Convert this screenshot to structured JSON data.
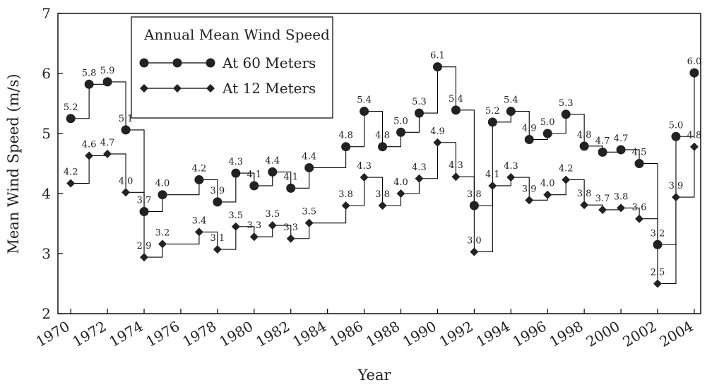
{
  "chart_data": {
    "type": "line",
    "xlabel": "Year",
    "ylabel": "Mean Wind Speed (m/s)",
    "ylim": [
      2,
      7
    ],
    "xlim": [
      1970,
      2004
    ],
    "y_ticks": [
      2,
      3,
      4,
      5,
      6,
      7
    ],
    "x_ticks": [
      1970,
      1972,
      1974,
      1976,
      1978,
      1980,
      1982,
      1984,
      1986,
      1988,
      1990,
      1992,
      1994,
      1996,
      1998,
      2000,
      2002,
      2004
    ],
    "x_ticks_labels": [
      "1970",
      "1972",
      "1974",
      "1976",
      "1978",
      "1980",
      "1982",
      "1984",
      "1986",
      "1988",
      "1990",
      "1992",
      "1994",
      "1996",
      "1998",
      "2000",
      "2002",
      "2004"
    ],
    "y_ticks_labels": [
      "2",
      "3",
      "4",
      "5",
      "6",
      "7"
    ],
    "step": "post",
    "grid": false,
    "legend": {
      "title": "Annual Mean Wind Speed",
      "placement": "top-left"
    },
    "x": [
      1970,
      1971,
      1972,
      1973,
      1974,
      1975,
      1977,
      1978,
      1979,
      1980,
      1981,
      1982,
      1983,
      1985,
      1986,
      1987,
      1988,
      1989,
      1990,
      1991,
      1992,
      1993,
      1994,
      1995,
      1996,
      1997,
      1998,
      1999,
      2000,
      2001,
      2002,
      2003,
      2004
    ],
    "series": [
      {
        "name": "At 60 Meters",
        "marker": "circle",
        "values": [
          5.25,
          5.82,
          5.86,
          5.06,
          3.7,
          3.98,
          4.23,
          3.86,
          4.34,
          4.13,
          4.36,
          4.09,
          4.43,
          4.78,
          5.37,
          4.78,
          5.02,
          5.34,
          6.11,
          5.39,
          3.8,
          5.19,
          5.37,
          4.9,
          5.0,
          5.32,
          4.79,
          4.69,
          4.73,
          4.5,
          3.15,
          4.95,
          6.01
        ],
        "labels": [
          "5.2",
          "5.8",
          "5.9",
          "5.1",
          "3.7",
          "4.0",
          "4.2",
          "3.9",
          "4.3",
          "4.1",
          "4.4",
          "4.1",
          "4.4",
          "4.8",
          "5.4",
          "4.8",
          "5.0",
          "5.3",
          "6.1",
          "5.4",
          "3.8",
          "5.2",
          "5.4",
          "4.9",
          "5.0",
          "5.3",
          "4.8",
          "4.7",
          "4.7",
          "4.5",
          "3.2",
          "5.0",
          "6.0"
        ]
      },
      {
        "name": "At 12 Meters",
        "marker": "diamond",
        "values": [
          4.17,
          4.63,
          4.66,
          4.02,
          2.94,
          3.16,
          3.36,
          3.07,
          3.45,
          3.28,
          3.47,
          3.25,
          3.51,
          3.8,
          4.27,
          3.8,
          4.0,
          4.25,
          4.85,
          4.28,
          3.03,
          4.13,
          4.27,
          3.89,
          3.98,
          4.23,
          3.81,
          3.73,
          3.76,
          3.58,
          2.5,
          3.94,
          4.78
        ],
        "labels": [
          "4.2",
          "4.6",
          "4.7",
          "4.0",
          "2.9",
          "3.2",
          "3.4",
          "3.1",
          "3.5",
          "3.3",
          "3.5",
          "3.3",
          "3.5",
          "3.8",
          "4.3",
          "3.8",
          "4.0",
          "4.3",
          "4.9",
          "4.3",
          "3.0",
          "4.1",
          "4.3",
          "3.9",
          "4.0",
          "4.2",
          "3.8",
          "3.7",
          "3.8",
          "3.6",
          "2.5",
          "3.9",
          "4.8"
        ]
      }
    ]
  }
}
